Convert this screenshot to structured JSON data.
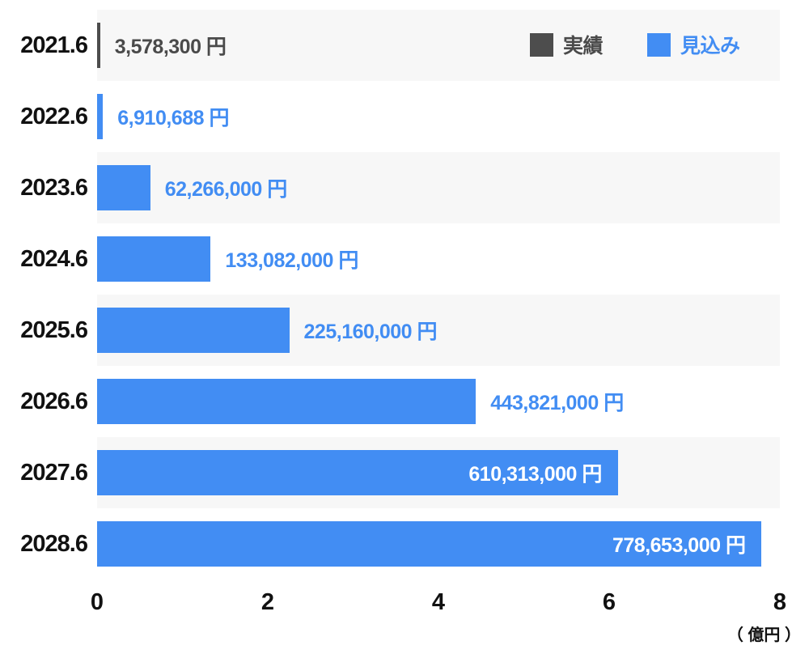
{
  "chart_data": {
    "type": "bar",
    "orientation": "horizontal",
    "title": "",
    "xlabel": "",
    "ylabel": "",
    "axis_unit_label": "（ 億円 ）",
    "x_axis": {
      "min": 0,
      "max": 8,
      "ticks": [
        0,
        2,
        4,
        6,
        8
      ],
      "unit_value_yen": 100000000,
      "grid": false
    },
    "legend": {
      "position": "top-right",
      "items": [
        {
          "name": "actual",
          "label": "実績",
          "color": "#4d4d4d",
          "text_color": "#4a4a4a"
        },
        {
          "name": "forecast",
          "label": "見込み",
          "color": "#428df3",
          "text_color": "#428df3"
        }
      ]
    },
    "categories": [
      "2021.6",
      "2022.6",
      "2023.6",
      "2024.6",
      "2025.6",
      "2026.6",
      "2027.6",
      "2028.6"
    ],
    "rows": [
      {
        "label": "2021.6",
        "series": "actual",
        "value": 3578300,
        "value_label": "3,578,300 円",
        "label_position": "outside",
        "striped": true
      },
      {
        "label": "2022.6",
        "series": "forecast",
        "value": 6910688,
        "value_label": "6,910,688 円",
        "label_position": "outside",
        "striped": false
      },
      {
        "label": "2023.6",
        "series": "forecast",
        "value": 62266000,
        "value_label": "62,266,000 円",
        "label_position": "outside",
        "striped": true
      },
      {
        "label": "2024.6",
        "series": "forecast",
        "value": 133082000,
        "value_label": "133,082,000 円",
        "label_position": "outside",
        "striped": false
      },
      {
        "label": "2025.6",
        "series": "forecast",
        "value": 225160000,
        "value_label": "225,160,000 円",
        "label_position": "outside",
        "striped": true
      },
      {
        "label": "2026.6",
        "series": "forecast",
        "value": 443821000,
        "value_label": "443,821,000 円",
        "label_position": "outside",
        "striped": false
      },
      {
        "label": "2027.6",
        "series": "forecast",
        "value": 610313000,
        "value_label": "610,313,000 円",
        "label_position": "inside",
        "striped": true
      },
      {
        "label": "2028.6",
        "series": "forecast",
        "value": 778653000,
        "value_label": "778,653,000 円",
        "label_position": "inside",
        "striped": false
      }
    ]
  },
  "colors": {
    "background": "#ffffff",
    "row_stripe": "#f7f7f7",
    "bar_actual": "#4d4d4d",
    "bar_forecast": "#428df3",
    "year_label": "#111111",
    "tick_label": "#111111",
    "inside_value_label": "#ffffff"
  }
}
